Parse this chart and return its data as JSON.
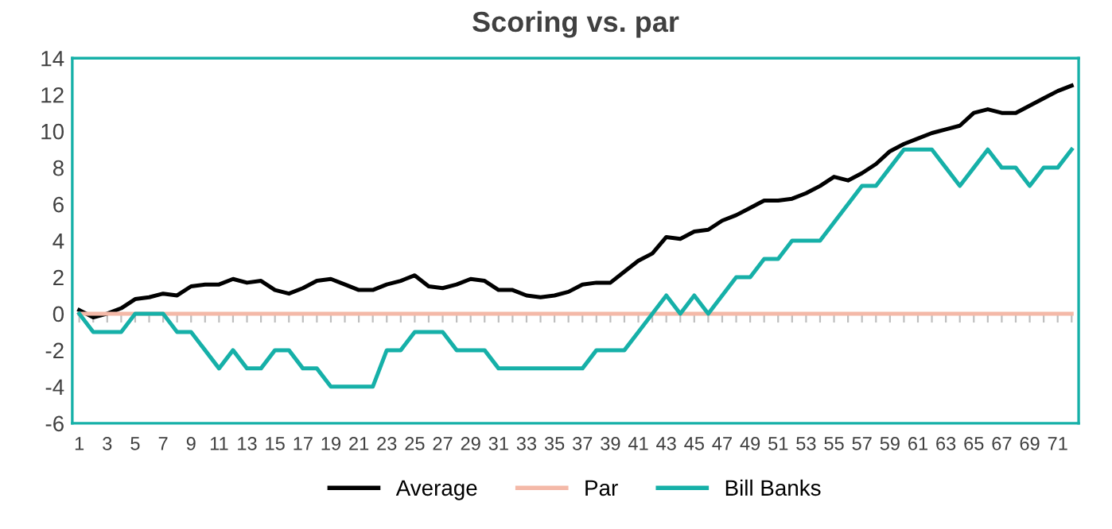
{
  "chart_data": {
    "type": "line",
    "title": "Scoring vs. par",
    "categories": [
      "1",
      null,
      "3",
      null,
      "5",
      null,
      "7",
      null,
      "9",
      null,
      "11",
      null,
      "13",
      null,
      "15",
      null,
      "17",
      null,
      "19",
      null,
      "21",
      null,
      "23",
      null,
      "25",
      null,
      "27",
      null,
      "29",
      null,
      "31",
      null,
      "33",
      null,
      "35",
      null,
      "37",
      null,
      "39",
      null,
      "41",
      null,
      "43",
      null,
      "45",
      null,
      "47",
      null,
      "49",
      null,
      "51",
      null,
      "53",
      null,
      "55",
      null,
      "57",
      null,
      "59",
      null,
      "61",
      null,
      "63",
      null,
      "65",
      null,
      "67",
      null,
      "69",
      null,
      "71",
      null
    ],
    "series": [
      {
        "name": "Average",
        "color": "#000000",
        "values": [
          0.2,
          -0.2,
          0,
          0.3,
          0.8,
          0.9,
          1.1,
          1.0,
          1.5,
          1.6,
          1.6,
          1.9,
          1.7,
          1.8,
          1.3,
          1.1,
          1.4,
          1.8,
          1.9,
          1.6,
          1.3,
          1.3,
          1.6,
          1.8,
          2.1,
          1.5,
          1.4,
          1.6,
          1.9,
          1.8,
          1.3,
          1.3,
          1.0,
          0.9,
          1.0,
          1.2,
          1.6,
          1.7,
          1.7,
          2.3,
          2.9,
          3.3,
          4.2,
          4.1,
          4.5,
          4.6,
          5.1,
          5.4,
          5.8,
          6.2,
          6.2,
          6.3,
          6.6,
          7.0,
          7.5,
          7.3,
          7.7,
          8.2,
          8.9,
          9.3,
          9.6,
          9.9,
          10.1,
          10.3,
          11.0,
          11.2,
          11.0,
          11.0,
          11.4,
          11.8,
          12.2,
          12.5
        ]
      },
      {
        "name": "Par",
        "color": "#f4b9a8",
        "values": [
          0,
          0,
          0,
          0,
          0,
          0,
          0,
          0,
          0,
          0,
          0,
          0,
          0,
          0,
          0,
          0,
          0,
          0,
          0,
          0,
          0,
          0,
          0,
          0,
          0,
          0,
          0,
          0,
          0,
          0,
          0,
          0,
          0,
          0,
          0,
          0,
          0,
          0,
          0,
          0,
          0,
          0,
          0,
          0,
          0,
          0,
          0,
          0,
          0,
          0,
          0,
          0,
          0,
          0,
          0,
          0,
          0,
          0,
          0,
          0,
          0,
          0,
          0,
          0,
          0,
          0,
          0,
          0,
          0,
          0,
          0,
          0
        ]
      },
      {
        "name": "Bill Banks",
        "color": "#16b0a8",
        "values": [
          0,
          -1,
          -1,
          -1,
          0,
          0,
          0,
          -1,
          -1,
          -2,
          -3,
          -2,
          -3,
          -3,
          -2,
          -2,
          -3,
          -3,
          -4,
          -4,
          -4,
          -4,
          -2,
          -2,
          -1,
          -1,
          -1,
          -2,
          -2,
          -2,
          -3,
          -3,
          -3,
          -3,
          -3,
          -3,
          -3,
          -2,
          -2,
          -2,
          -1,
          0,
          1,
          0,
          1,
          0,
          1,
          2,
          2,
          3,
          3,
          4,
          4,
          4,
          5,
          6,
          7,
          7,
          8,
          9,
          9,
          9,
          8,
          7,
          8,
          9,
          8,
          8,
          7,
          8,
          8,
          9
        ]
      }
    ],
    "ylim": [
      -6,
      14
    ],
    "yticks": [
      -6,
      -4,
      -2,
      0,
      2,
      4,
      6,
      8,
      10,
      12,
      14
    ],
    "grid": false,
    "legend": "bottom",
    "marker": "none",
    "line_style": "solid"
  }
}
